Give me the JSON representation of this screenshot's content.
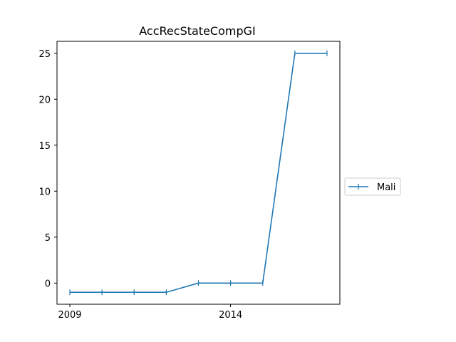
{
  "chart_data": {
    "type": "line",
    "title": "AccRecStateCompGI",
    "xlabel": "",
    "ylabel": "",
    "x": [
      2009,
      2010,
      2011,
      2012,
      2013,
      2014,
      2015,
      2016,
      2017
    ],
    "x_ticks": [
      "2009",
      "2014"
    ],
    "y_ticks": [
      "0",
      "5",
      "10",
      "15",
      "20",
      "25"
    ],
    "xlim": [
      2008.6,
      2017.4
    ],
    "ylim": [
      -2.3,
      26.3
    ],
    "grid": false,
    "legend_position": "right",
    "series": [
      {
        "name": "Mali",
        "color": "#1f77b4",
        "marker": "vertical-tick",
        "values": [
          -1,
          -1,
          -1,
          -1,
          0,
          0,
          0,
          25,
          25
        ]
      }
    ]
  }
}
